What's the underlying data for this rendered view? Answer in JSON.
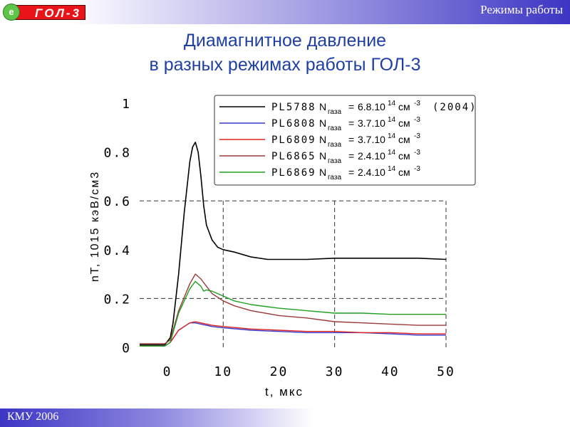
{
  "header": {
    "section_title": "Режимы работы",
    "logo_text": "ГОЛ-3",
    "logo_badge": "e"
  },
  "title": {
    "line1": "Диамагнитное давление",
    "line2": "в разных режимах работы ГОЛ-3"
  },
  "footer": {
    "text": "КМУ 2006"
  },
  "chart_data": {
    "type": "line",
    "xlabel": "t, мкс",
    "ylabel": "nT, 1015 кэВ/см3",
    "xlim": [
      -5,
      50
    ],
    "ylim": [
      0,
      1
    ],
    "x_ticks": [
      0,
      10,
      20,
      30,
      40,
      50
    ],
    "y_ticks": [
      0,
      0.2,
      0.4,
      0.6,
      0.8,
      1
    ],
    "y_tick_labels": [
      "0",
      "0.2",
      "0.4",
      "0.6",
      "0.8",
      "1"
    ],
    "grid": "dashed at x=10,30,50 and y=0.2,0.6",
    "legend_position": "top-right",
    "series": [
      {
        "name": "PL5788",
        "legend_value": "6.8.10",
        "legend_year": "(2004)",
        "color": "#000000",
        "x": [
          -5,
          -0.5,
          0.5,
          1,
          2,
          3,
          4,
          4.5,
          5,
          5.5,
          6,
          6.5,
          7,
          8,
          9,
          10,
          12,
          15,
          18,
          20,
          25,
          30,
          35,
          40,
          45,
          50
        ],
        "y": [
          0.01,
          0.01,
          0.04,
          0.1,
          0.3,
          0.55,
          0.76,
          0.82,
          0.84,
          0.8,
          0.7,
          0.58,
          0.5,
          0.44,
          0.41,
          0.4,
          0.39,
          0.37,
          0.36,
          0.36,
          0.36,
          0.365,
          0.365,
          0.365,
          0.365,
          0.36
        ]
      },
      {
        "name": "PL6808",
        "legend_value": "3.7.10",
        "color": "#3a3acc",
        "x": [
          -5,
          -0.5,
          0.5,
          2,
          4,
          5,
          6,
          7,
          8,
          10,
          15,
          20,
          25,
          30,
          35,
          40,
          45,
          50
        ],
        "y": [
          0.005,
          0.005,
          0.02,
          0.07,
          0.1,
          0.1,
          0.095,
          0.09,
          0.085,
          0.08,
          0.07,
          0.065,
          0.06,
          0.06,
          0.06,
          0.055,
          0.05,
          0.05
        ]
      },
      {
        "name": "PL6809",
        "legend_value": "3.7.10",
        "color": "#dd2222",
        "x": [
          -5,
          -0.5,
          0.5,
          2,
          4,
          5,
          6,
          7,
          8,
          10,
          15,
          20,
          25,
          30,
          35,
          40,
          45,
          50
        ],
        "y": [
          0.005,
          0.005,
          0.02,
          0.07,
          0.1,
          0.105,
          0.1,
          0.095,
          0.09,
          0.085,
          0.075,
          0.07,
          0.065,
          0.065,
          0.06,
          0.06,
          0.055,
          0.055
        ]
      },
      {
        "name": "PL6865",
        "legend_value": "2.4.10",
        "color": "#9a3a3a",
        "x": [
          -5,
          -0.5,
          0.5,
          2,
          4,
          5,
          6,
          7,
          8,
          10,
          12,
          15,
          20,
          25,
          30,
          35,
          40,
          45,
          50
        ],
        "y": [
          0.015,
          0.015,
          0.03,
          0.15,
          0.26,
          0.3,
          0.28,
          0.25,
          0.22,
          0.19,
          0.17,
          0.15,
          0.13,
          0.12,
          0.105,
          0.1,
          0.095,
          0.09,
          0.09
        ]
      },
      {
        "name": "PL6869",
        "legend_value": "2.4.10",
        "color": "#1fa01f",
        "x": [
          -5,
          -0.5,
          0.5,
          2,
          4,
          5,
          6,
          6.5,
          7,
          8,
          10,
          12,
          15,
          20,
          25,
          30,
          35,
          40,
          45,
          50
        ],
        "y": [
          0.005,
          0.005,
          0.02,
          0.14,
          0.24,
          0.27,
          0.25,
          0.23,
          0.235,
          0.23,
          0.21,
          0.19,
          0.175,
          0.16,
          0.15,
          0.14,
          0.14,
          0.135,
          0.135,
          0.135
        ]
      }
    ],
    "legend_labels": {
      "n_symbol": "N",
      "subscript": "газа",
      "equals": "=",
      "exponent": "14",
      "unit": "см",
      "unit_exponent": "-3"
    }
  }
}
